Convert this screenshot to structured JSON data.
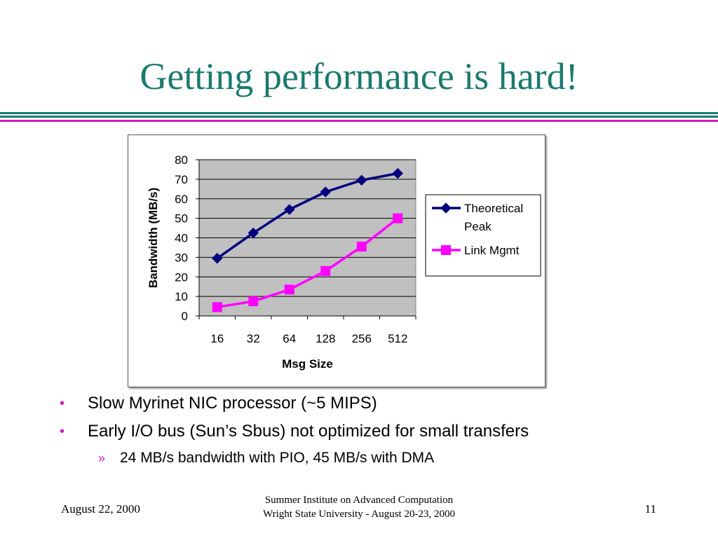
{
  "slide": {
    "title": "Getting performance is hard!",
    "accent_teal": "#1a7a6e",
    "accent_magenta": "#d01ac8"
  },
  "bullets": [
    {
      "text": "Slow Myrinet NIC processor (~5 MIPS)"
    },
    {
      "text": "Early I/O bus (Sun’s Sbus) not optimized for small transfers"
    }
  ],
  "sub_bullets": [
    {
      "text": "24 MB/s bandwidth with PIO, 45 MB/s with DMA"
    }
  ],
  "bullet_marker": "•",
  "sub_bullet_marker": "»",
  "footer": {
    "date": "August 22, 2000",
    "line1": "Summer Institute on Advanced Computation",
    "line2": "Wright State University - August 20-23, 2000",
    "page": "11"
  },
  "chart_data": {
    "type": "line",
    "title": "",
    "xlabel": "Msg Size",
    "ylabel": "Bandwidth (MB/s)",
    "categories": [
      "16",
      "32",
      "64",
      "128",
      "256",
      "512"
    ],
    "ylim": [
      0,
      80
    ],
    "yticks": [
      0,
      10,
      20,
      30,
      40,
      50,
      60,
      70,
      80
    ],
    "grid": true,
    "plot_background": "#c0c0c0",
    "legend_position": "right",
    "series": [
      {
        "name": "Theoretical Peak",
        "legend_lines": [
          "Theoretical",
          "Peak"
        ],
        "color": "#00007f",
        "marker": "diamond",
        "values": [
          29.5,
          42.5,
          54.5,
          63.5,
          69.5,
          73
        ]
      },
      {
        "name": "Link Mgmt",
        "legend_lines": [
          "Link Mgmt"
        ],
        "color": "#ff00ff",
        "marker": "square",
        "values": [
          4.5,
          7.5,
          13.5,
          23,
          35.5,
          50
        ]
      }
    ]
  }
}
